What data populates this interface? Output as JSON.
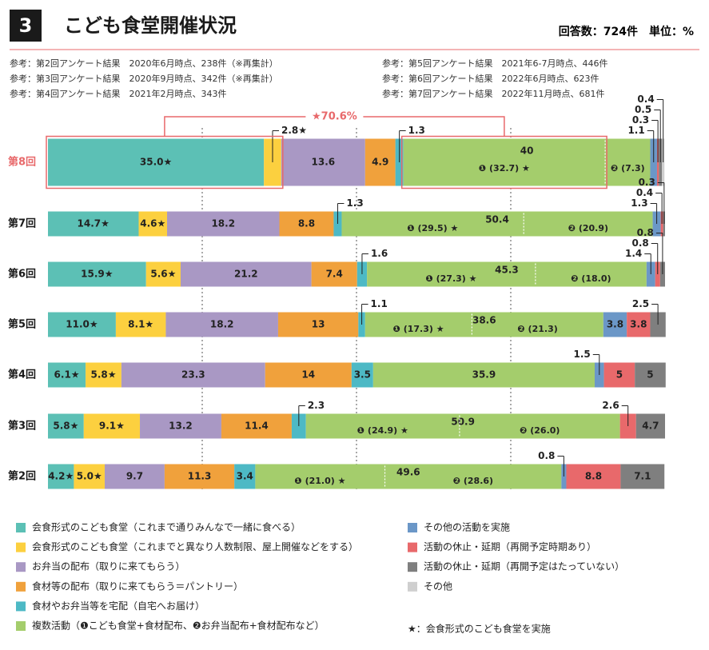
{
  "header": {
    "number": "3",
    "title": "こども食堂開催状況",
    "meta": "回答数：724件　単位：%"
  },
  "notes": [
    "参考：第2回アンケート結果　2020年6月時点、238件（※再集計）",
    "参考：第3回アンケート結果　2020年9月時点、342件（※再集計）",
    "参考：第4回アンケート結果　2021年2月時点、343件",
    "参考：第5回アンケート結果　2021年6-7月時点、446件",
    "参考：第6回アンケート結果　2022年6月時点、623件",
    "参考：第7回アンケート結果　2022年11月時点、681件"
  ],
  "chart_data": {
    "type": "stacked_bar",
    "orientation": "horizontal",
    "categories": [
      "第8回",
      "第7回",
      "第6回",
      "第5回",
      "第4回",
      "第3回",
      "第2回"
    ],
    "xlim": [
      0,
      100
    ],
    "xticks": [
      25,
      50,
      75
    ],
    "grid": true,
    "series": [
      {
        "name": "会食形式のこども食堂（これまで通りみんなで一緒に食べる）",
        "color": "#5cc0b5",
        "values": [
          35.0,
          14.7,
          15.9,
          11.0,
          6.1,
          5.8,
          4.2
        ],
        "value_labels": [
          "35.0★",
          "14.7★",
          "15.9★",
          "11.0★",
          "6.1★",
          "5.8★",
          "4.2★"
        ]
      },
      {
        "name": "会食形式のこども食堂（これまでと異なり人数制限、屋上開催などをする）",
        "color": "#fcd03f",
        "values": [
          2.8,
          4.6,
          5.6,
          8.1,
          5.8,
          9.1,
          5.0
        ],
        "value_labels": [
          "2.8★",
          "4.6★",
          "5.6★",
          "8.1★",
          "5.8★",
          "9.1★",
          "5.0★"
        ]
      },
      {
        "name": "お弁当の配布（取りに来てもらう）",
        "color": "#a998c4",
        "values": [
          13.6,
          18.2,
          21.2,
          18.2,
          23.3,
          13.2,
          9.7
        ]
      },
      {
        "name": "食材等の配布（取りに来てもらう＝パントリー）",
        "color": "#f0a13c",
        "values": [
          4.9,
          8.8,
          7.4,
          13.0,
          14.0,
          11.4,
          11.3
        ]
      },
      {
        "name": "食材やお弁当等を宅配（自宅へお届け）",
        "color": "#4db9c5",
        "values": [
          1.3,
          1.3,
          1.6,
          1.1,
          3.5,
          2.3,
          3.4
        ]
      },
      {
        "name": "複数活動（❶こども食堂+食材配布、❷お弁当配布+食材配布など）",
        "color": "#a4cd6c",
        "values": [
          40.0,
          50.4,
          45.3,
          38.6,
          35.9,
          50.9,
          49.6
        ]
      },
      {
        "name": "その他の活動を実施",
        "color": "#6b97c7",
        "values": [
          1.1,
          1.3,
          1.4,
          3.8,
          1.5,
          null,
          0.8
        ]
      },
      {
        "name": "活動の休止・延期（再開予定時期あり）",
        "color": "#e8696b",
        "values": [
          0.3,
          0.4,
          0.8,
          3.8,
          5.0,
          2.6,
          8.8
        ]
      },
      {
        "name": "活動の休止・延期（再開予定はたっていない）",
        "color": "#7f7f7f",
        "values": [
          0.5,
          0.3,
          0.8,
          2.5,
          5.0,
          4.7,
          7.1
        ]
      },
      {
        "name": "その他",
        "color": "#cfcfcf",
        "values": [
          0.4,
          null,
          null,
          null,
          null,
          null,
          null
        ]
      }
    ],
    "breakdown": [
      [
        {
          "value": 32.7,
          "label": "❶ (32.7) ★"
        },
        {
          "value": 7.3,
          "label": "❷ (7.3)"
        }
      ],
      [
        {
          "value": 29.5,
          "label": "❶ (29.5) ★"
        },
        {
          "value": 20.9,
          "label": "❷ (20.9)"
        }
      ],
      [
        {
          "value": 27.3,
          "label": "❶ (27.3) ★"
        },
        {
          "value": 18.0,
          "label": "❷ (18.0)"
        }
      ],
      [
        {
          "value": 17.3,
          "label": "❶ (17.3) ★"
        },
        {
          "value": 21.3,
          "label": "❷ (21.3)"
        }
      ],
      [],
      [
        {
          "value": 24.9,
          "label": "❶ (24.9) ★"
        },
        {
          "value": 26.0,
          "label": "❷ (26.0)"
        }
      ],
      [
        {
          "value": 21.0,
          "label": "❶ (21.0) ★"
        },
        {
          "value": 28.6,
          "label": "❷ (28.6)"
        }
      ]
    ],
    "annotation": "★70.6%",
    "star_note": "★：会食形式のこども食堂を実施"
  }
}
